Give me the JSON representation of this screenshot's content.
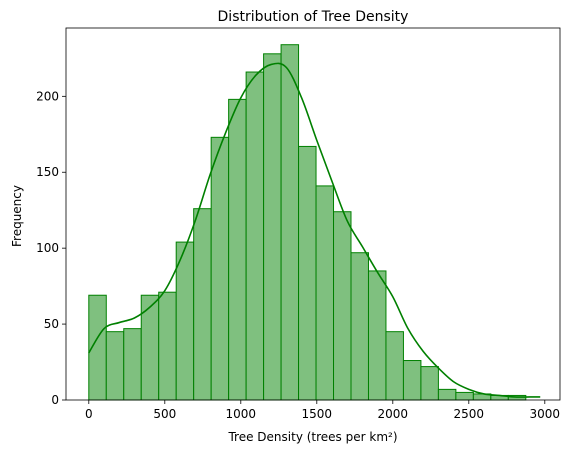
{
  "chart_data": {
    "type": "bar",
    "title": "Distribution of Tree Density",
    "xlabel": "Tree Density (trees per km²)",
    "ylabel": "Frequency",
    "xlim": [
      -150,
      3100
    ],
    "ylim": [
      0,
      245
    ],
    "xticks": [
      0,
      500,
      1000,
      1500,
      2000,
      2500,
      3000
    ],
    "yticks": [
      0,
      50,
      100,
      150,
      200
    ],
    "bin_start": 0,
    "bin_width": 115,
    "values": [
      69,
      45,
      47,
      69,
      71,
      104,
      126,
      173,
      198,
      216,
      228,
      234,
      167,
      141,
      124,
      97,
      85,
      45,
      26,
      22,
      7,
      5,
      4,
      3,
      3
    ],
    "kde": {
      "x": [
        0,
        100,
        200,
        300,
        400,
        500,
        600,
        700,
        800,
        900,
        1000,
        1100,
        1200,
        1300,
        1400,
        1500,
        1600,
        1700,
        1800,
        1900,
        2000,
        2100,
        2200,
        2300,
        2400,
        2500,
        2600,
        2700,
        2800,
        2900,
        2970
      ],
      "y": [
        31,
        47,
        51,
        54,
        61,
        72,
        92,
        118,
        149,
        176,
        199,
        214,
        221,
        219,
        199,
        171,
        144,
        118,
        101,
        84,
        68,
        47,
        32,
        21,
        12,
        7,
        4,
        3,
        2,
        2,
        2
      ]
    },
    "grid": false,
    "bar_color": "#7fc07f",
    "edge_color": "#008000",
    "kde_color": "#008000"
  }
}
